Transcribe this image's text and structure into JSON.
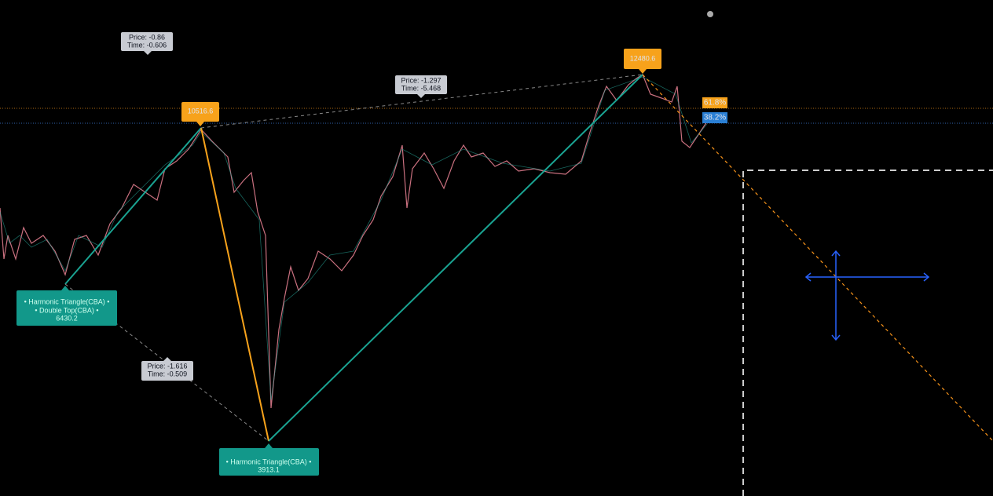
{
  "callouts": {
    "top_left": {
      "price": "Price: -0.86",
      "time": "Time: -0.606"
    },
    "point_b": "10516.6",
    "top_middle": {
      "price": "Price: -1.297",
      "time": "Time: -5.468"
    },
    "point_d": "12480.6",
    "fib_618": "61.8%",
    "fib_382": "38.2%",
    "point_a": {
      "line1": "• Harmonic Triangle(CBA) •",
      "line2": "• Double Top(CBA) •",
      "line3": "6430.2"
    },
    "bottom_left": {
      "price": "Price: -1.616",
      "time": "Time: -0.509"
    },
    "point_c": {
      "line1": "• Harmonic Triangle(CBA) •",
      "line2": "3913.1"
    }
  }
}
